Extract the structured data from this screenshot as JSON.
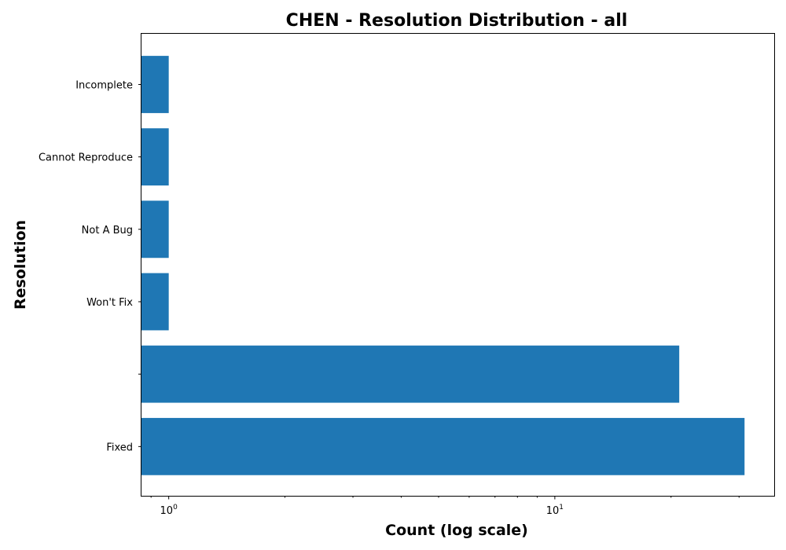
{
  "chart_data": {
    "type": "bar",
    "orientation": "horizontal",
    "title": "CHEN - Resolution Distribution - all",
    "xlabel": "Count (log scale)",
    "ylabel": "Resolution",
    "x_scale": "log",
    "xlim": [
      0.85,
      37
    ],
    "grid": false,
    "x_tick_labels": [
      {
        "base": "10",
        "exp": "0",
        "value": 1
      },
      {
        "base": "10",
        "exp": "1",
        "value": 10
      }
    ],
    "categories": [
      "Fixed",
      "",
      "Won't Fix",
      "Not A Bug",
      "Cannot Reproduce",
      "Incomplete"
    ],
    "values": [
      31,
      21,
      1,
      1,
      1,
      1
    ],
    "bar_color": "#1f77b4"
  }
}
